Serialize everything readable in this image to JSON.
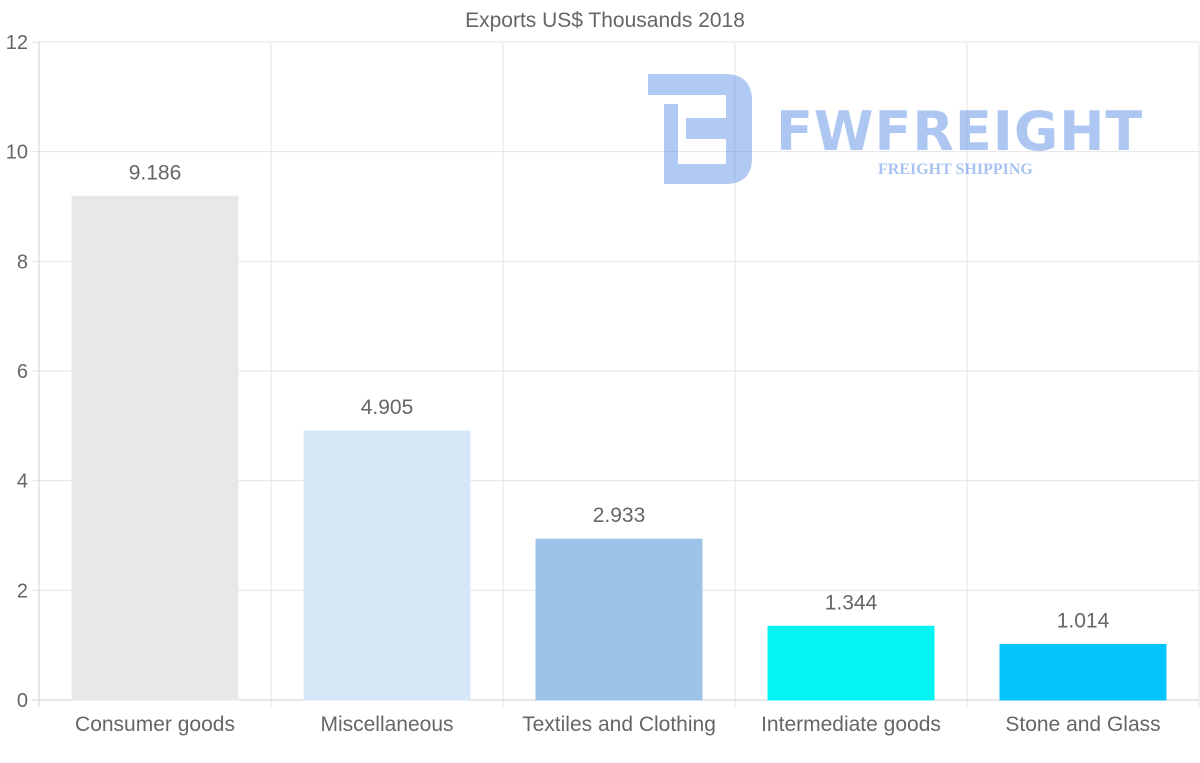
{
  "chart_data": {
    "type": "bar",
    "title": "Exports US$ Thousands 2018",
    "categories": [
      "Consumer goods",
      "Miscellaneous",
      "Textiles and Clothing",
      "Intermediate goods",
      "Stone and Glass"
    ],
    "values": [
      9.186,
      4.905,
      2.933,
      1.344,
      1.014
    ],
    "value_labels": [
      "9.186",
      "4.905",
      "2.933",
      "1.344",
      "1.014"
    ],
    "bar_colors": [
      "#e8e8e8",
      "#d6e8f8",
      "#9dc4e8",
      "#04f4f4",
      "#04c4fc"
    ],
    "ylim": [
      0,
      12
    ],
    "yticks": [
      0,
      2,
      4,
      6,
      8,
      10,
      12
    ],
    "xlabel": "",
    "ylabel": "",
    "grid": true,
    "legend": "none"
  },
  "watermark": {
    "brand": "FWFREIGHT",
    "tagline": "FREIGHT SHIPPING",
    "color": "#3d7ae0"
  }
}
